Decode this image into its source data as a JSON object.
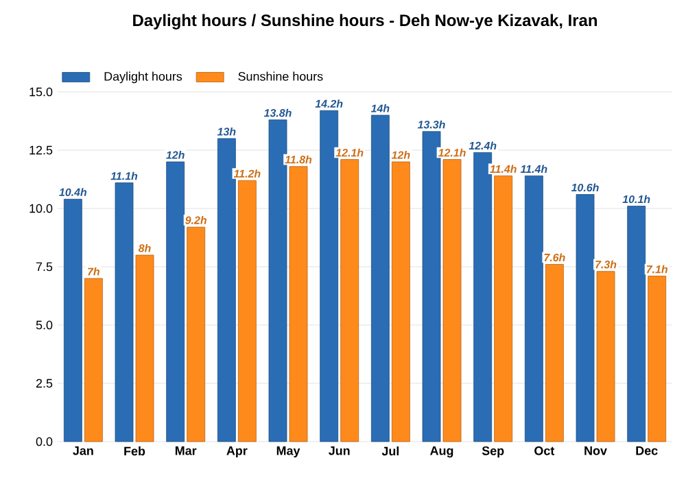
{
  "chart_data": {
    "type": "bar",
    "title": "Daylight hours / Sunshine hours - Deh Now-ye Kizavak, Iran",
    "categories": [
      "Jan",
      "Feb",
      "Mar",
      "Apr",
      "May",
      "Jun",
      "Jul",
      "Aug",
      "Sep",
      "Oct",
      "Nov",
      "Dec"
    ],
    "series": [
      {
        "name": "Daylight hours",
        "color": "#2a6db5",
        "values": [
          10.4,
          11.1,
          12,
          13,
          13.8,
          14.2,
          14,
          13.3,
          12.4,
          11.4,
          10.6,
          10.1
        ],
        "value_labels": [
          "10.4h",
          "11.1h",
          "12h",
          "13h",
          "13.8h",
          "14.2h",
          "14h",
          "13.3h",
          "12.4h",
          "11.4h",
          "10.6h",
          "10.1h"
        ]
      },
      {
        "name": "Sunshine hours",
        "color": "#ff8a1c",
        "values": [
          7,
          8,
          9.2,
          11.2,
          11.8,
          12.1,
          12,
          12.1,
          11.4,
          7.6,
          7.3,
          7.1
        ],
        "value_labels": [
          "7h",
          "8h",
          "9.2h",
          "11.2h",
          "11.8h",
          "12.1h",
          "12h",
          "12.1h",
          "11.4h",
          "7.6h",
          "7.3h",
          "7.1h"
        ]
      }
    ],
    "ylim": [
      0,
      15
    ],
    "yticks": [
      {
        "value": 0,
        "label": "0.0"
      },
      {
        "value": 2.5,
        "label": "2.5"
      },
      {
        "value": 5,
        "label": "5.0"
      },
      {
        "value": 7.5,
        "label": "7.5"
      },
      {
        "value": 10,
        "label": "10.0"
      },
      {
        "value": 12.5,
        "label": "12.5"
      },
      {
        "value": 15,
        "label": "15.0"
      }
    ],
    "grid": "y",
    "legend": "top left"
  }
}
